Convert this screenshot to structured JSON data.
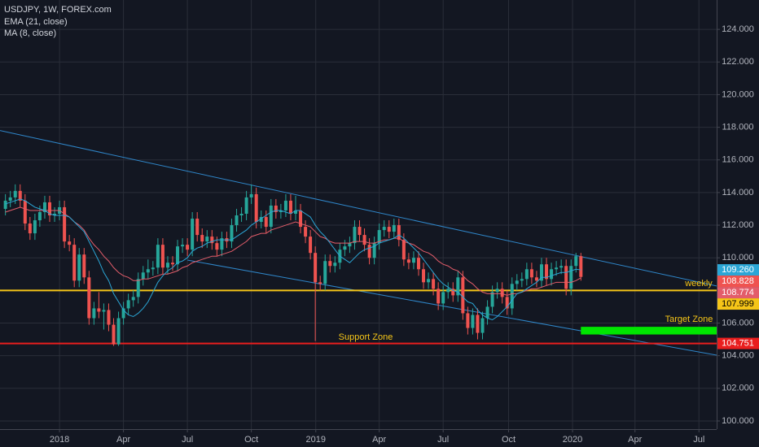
{
  "chart_data": {
    "type": "candlestick",
    "title": "USDJPY, 1W, FOREX.com",
    "xlim": [
      -1.1,
      144.6
    ],
    "ylim": [
      99.5,
      125.8
    ],
    "grid": true,
    "up_color": "#26a69a",
    "down_color": "#ef5350",
    "xticks": [
      {
        "value": 11,
        "label": "2018"
      },
      {
        "value": 24,
        "label": "Apr"
      },
      {
        "value": 37,
        "label": "Jul"
      },
      {
        "value": 50,
        "label": "Oct"
      },
      {
        "value": 63.1,
        "label": "2019"
      },
      {
        "value": 76,
        "label": "Apr"
      },
      {
        "value": 89,
        "label": "Jul"
      },
      {
        "value": 102.3,
        "label": "Oct"
      },
      {
        "value": 115.3,
        "label": "2020"
      },
      {
        "value": 128,
        "label": "Apr"
      },
      {
        "value": 141,
        "label": "Jul"
      }
    ],
    "yticks": [
      {
        "value": 100,
        "label": "100.000"
      },
      {
        "value": 102,
        "label": "102.000"
      },
      {
        "value": 104,
        "label": "104.000"
      },
      {
        "value": 106,
        "label": "106.000"
      },
      {
        "value": 108,
        "label": "108.000"
      },
      {
        "value": 110,
        "label": "110.000"
      },
      {
        "value": 112,
        "label": "112.000"
      },
      {
        "value": 114,
        "label": "114.000"
      },
      {
        "value": 116,
        "label": "116.000"
      },
      {
        "value": 118,
        "label": "118.000"
      },
      {
        "value": 120,
        "label": "120.000"
      },
      {
        "value": 122,
        "label": "122.000"
      },
      {
        "value": 124,
        "label": "124.000"
      }
    ],
    "open": [
      113.0,
      113.5,
      113.7,
      114.1,
      113.5,
      112.1,
      111.5,
      112.3,
      112.8,
      113.4,
      112.6,
      112.7,
      113.1,
      111.0,
      110.8,
      108.6,
      110.2,
      108.8,
      106.3,
      106.9,
      106.7,
      106.8,
      105.9,
      104.7,
      106.3,
      106.9,
      107.4,
      107.6,
      108.7,
      109.1,
      109.3,
      109.4,
      110.8,
      109.4,
      109.7,
      109.6,
      110.7,
      110.8,
      110.5,
      112.4,
      111.4,
      111.0,
      111.3,
      110.9,
      110.5,
      111.2,
      111.0,
      112.0,
      112.6,
      112.7,
      113.7,
      113.9,
      112.2,
      112.5,
      111.9,
      113.2,
      112.8,
      112.9,
      113.5,
      112.7,
      112.9,
      111.9,
      111.3,
      110.3,
      108.5,
      108.4,
      109.8,
      109.5,
      109.7,
      110.5,
      110.7,
      110.9,
      111.9,
      111.4,
      110.8,
      110.0,
      110.9,
      111.7,
      111.9,
      111.6,
      112.0,
      111.1,
      109.9,
      109.7,
      110.0,
      109.3,
      108.5,
      108.7,
      108.1,
      107.2,
      107.9,
      108.1,
      107.7,
      108.8,
      106.6,
      105.7,
      106.5,
      105.4,
      106.3,
      107.0,
      107.9,
      108.1,
      107.6,
      106.9,
      108.4,
      108.6,
      108.7,
      109.3,
      108.8,
      108.6,
      109.6,
      108.7,
      109.3,
      109.4,
      109.5,
      108.1,
      109.5,
      110.1
    ],
    "high": [
      113.9,
      114.1,
      114.5,
      114.5,
      113.9,
      112.5,
      112.7,
      113.2,
      113.8,
      113.8,
      113.1,
      113.5,
      113.5,
      111.4,
      111.2,
      110.6,
      110.6,
      109.2,
      107.3,
      107.9,
      107.2,
      107.2,
      106.3,
      106.7,
      107.3,
      107.8,
      108.0,
      109.1,
      109.5,
      109.9,
      109.8,
      111.2,
      111.2,
      110.1,
      110.1,
      111.1,
      111.2,
      111.2,
      112.8,
      112.8,
      111.8,
      111.7,
      111.7,
      111.3,
      111.6,
      111.6,
      112.4,
      113.0,
      113.1,
      114.1,
      114.5,
      114.3,
      112.9,
      112.9,
      113.6,
      113.6,
      113.3,
      113.9,
      113.9,
      113.8,
      113.3,
      112.3,
      111.7,
      110.7,
      108.9,
      110.2,
      110.2,
      110.1,
      110.9,
      111.1,
      111.3,
      112.3,
      112.3,
      111.8,
      111.2,
      111.3,
      112.1,
      112.3,
      112.3,
      112.4,
      112.4,
      111.5,
      110.3,
      110.4,
      110.4,
      109.7,
      109.1,
      109.1,
      108.5,
      108.3,
      108.5,
      108.5,
      109.2,
      109.2,
      107.0,
      106.9,
      106.9,
      106.7,
      107.4,
      108.3,
      108.5,
      108.5,
      108.0,
      108.8,
      109.0,
      109.1,
      109.7,
      109.7,
      109.2,
      110.0,
      110.0,
      109.7,
      109.8,
      109.9,
      109.9,
      109.9,
      110.3,
      110.3
    ],
    "low": [
      112.6,
      113.1,
      113.3,
      113.1,
      111.7,
      111.1,
      111.1,
      111.9,
      112.4,
      112.2,
      112.2,
      112.3,
      110.6,
      110.4,
      108.2,
      108.2,
      108.4,
      105.9,
      105.9,
      106.3,
      105.6,
      105.5,
      104.6,
      104.6,
      105.9,
      106.5,
      107.0,
      107.2,
      108.3,
      108.7,
      108.9,
      109.0,
      109.0,
      109.0,
      109.2,
      109.2,
      110.3,
      110.1,
      110.1,
      111.0,
      110.6,
      110.6,
      110.5,
      110.1,
      110.1,
      110.6,
      110.6,
      111.6,
      112.2,
      112.3,
      113.3,
      111.8,
      111.8,
      111.5,
      111.5,
      112.4,
      112.4,
      112.5,
      112.3,
      112.3,
      111.5,
      110.9,
      109.9,
      104.9,
      108.0,
      108.0,
      109.1,
      109.1,
      109.3,
      110.1,
      110.3,
      110.5,
      111.0,
      110.4,
      109.6,
      109.6,
      110.5,
      111.3,
      111.2,
      111.2,
      110.7,
      109.5,
      109.3,
      109.3,
      108.9,
      108.1,
      108.1,
      107.7,
      106.8,
      106.8,
      107.5,
      107.3,
      107.3,
      106.2,
      105.3,
      105.3,
      105.0,
      105.0,
      105.9,
      106.6,
      107.5,
      107.2,
      106.5,
      106.5,
      108.0,
      108.2,
      108.3,
      108.4,
      108.2,
      108.2,
      108.3,
      108.3,
      108.9,
      109.0,
      107.7,
      107.7,
      109.1,
      108.6
    ],
    "close": [
      113.5,
      113.7,
      114.1,
      113.5,
      112.1,
      111.5,
      112.3,
      112.8,
      113.4,
      112.6,
      112.7,
      113.1,
      111.0,
      110.8,
      108.6,
      110.2,
      108.8,
      106.3,
      106.9,
      106.7,
      106.8,
      105.9,
      104.7,
      106.3,
      106.9,
      107.4,
      107.6,
      108.7,
      109.1,
      109.3,
      109.4,
      110.8,
      109.4,
      109.7,
      109.6,
      110.7,
      110.8,
      110.5,
      112.4,
      111.4,
      111.0,
      111.3,
      110.9,
      110.5,
      111.2,
      111.0,
      112.0,
      112.6,
      112.7,
      113.7,
      113.9,
      112.2,
      112.5,
      111.9,
      113.2,
      112.8,
      112.9,
      113.5,
      112.7,
      112.9,
      111.9,
      111.3,
      110.3,
      108.5,
      108.4,
      109.8,
      109.5,
      109.7,
      110.5,
      110.7,
      110.9,
      111.9,
      111.4,
      110.8,
      110.0,
      110.9,
      111.7,
      111.9,
      111.6,
      112.0,
      111.1,
      109.9,
      109.7,
      110.0,
      109.3,
      108.5,
      108.7,
      108.1,
      107.2,
      107.9,
      108.1,
      107.7,
      108.8,
      106.6,
      105.7,
      106.5,
      105.4,
      106.3,
      107.0,
      107.9,
      108.1,
      107.6,
      106.9,
      108.4,
      108.6,
      108.7,
      109.3,
      108.8,
      108.6,
      109.6,
      108.7,
      109.3,
      109.4,
      109.5,
      108.1,
      109.5,
      110.1,
      108.828
    ],
    "close_label": "108.828",
    "series": [
      {
        "name": "EMA (21, close)",
        "color": "#e35d6a",
        "last_label": "108.774",
        "values": [
          112.8,
          112.9,
          113.0,
          113.1,
          113.0,
          112.9,
          112.9,
          112.9,
          112.9,
          112.9,
          112.9,
          112.9,
          112.7,
          112.5,
          112.2,
          112.0,
          111.7,
          111.2,
          110.8,
          110.5,
          110.1,
          109.8,
          109.4,
          109.1,
          108.9,
          108.8,
          108.6,
          108.6,
          108.7,
          108.7,
          108.8,
          108.9,
          109.0,
          109.0,
          109.1,
          109.2,
          109.4,
          109.5,
          109.7,
          109.8,
          109.9,
          110.0,
          110.1,
          110.1,
          110.2,
          110.3,
          110.4,
          110.6,
          110.8,
          111.0,
          111.3,
          111.4,
          111.5,
          111.5,
          111.7,
          111.8,
          111.9,
          112.0,
          112.1,
          112.2,
          112.1,
          112.0,
          111.9,
          111.6,
          111.3,
          111.2,
          111.0,
          110.9,
          110.9,
          110.9,
          110.9,
          111.0,
          111.0,
          111.0,
          110.9,
          110.9,
          111.0,
          111.1,
          111.1,
          111.2,
          111.2,
          111.0,
          110.9,
          110.8,
          110.6,
          110.4,
          110.3,
          110.1,
          109.8,
          109.6,
          109.5,
          109.3,
          109.2,
          108.9,
          108.6,
          108.4,
          108.1,
          107.9,
          107.8,
          107.8,
          107.8,
          107.8,
          107.7,
          107.8,
          107.8,
          107.9,
          108.0,
          108.1,
          108.1,
          108.2,
          108.3,
          108.4,
          108.5,
          108.5,
          108.5,
          108.5,
          108.6,
          108.774
        ]
      },
      {
        "name": "MA (8, close)",
        "color": "#2ba6d6",
        "last_label": "109.260",
        "values": [
          113.3,
          113.4,
          113.5,
          113.6,
          113.5,
          113.3,
          113.1,
          113.0,
          112.9,
          112.7,
          112.6,
          112.6,
          112.6,
          112.5,
          112.2,
          111.9,
          111.6,
          111.0,
          110.4,
          109.8,
          109.1,
          108.6,
          107.8,
          107.3,
          106.8,
          106.5,
          106.4,
          106.6,
          106.9,
          107.3,
          107.9,
          108.5,
          108.9,
          109.2,
          109.4,
          109.7,
          109.8,
          110.0,
          110.4,
          110.6,
          110.7,
          110.9,
          111.0,
          111.1,
          111.1,
          111.1,
          111.1,
          111.3,
          111.5,
          111.7,
          112.0,
          112.2,
          112.4,
          112.6,
          112.8,
          112.9,
          112.9,
          112.8,
          112.7,
          112.9,
          112.9,
          112.7,
          112.5,
          112.0,
          111.6,
          111.3,
          110.9,
          110.5,
          110.1,
          109.9,
          109.7,
          110.0,
          110.3,
          110.5,
          110.6,
          110.7,
          110.9,
          111.0,
          111.1,
          111.2,
          111.4,
          111.2,
          110.9,
          110.6,
          110.3,
          109.9,
          109.5,
          109.1,
          108.7,
          108.4,
          108.2,
          108.0,
          107.9,
          107.6,
          107.3,
          107.2,
          106.8,
          106.5,
          106.3,
          106.2,
          106.4,
          106.7,
          107.0,
          107.4,
          107.8,
          107.9,
          108.1,
          108.3,
          108.5,
          108.8,
          108.8,
          108.9,
          109.0,
          109.1,
          109.1,
          109.2,
          109.3,
          109.26
        ]
      }
    ],
    "hlines": [
      {
        "value": 107.999,
        "label": "107.999",
        "color": "#f5c518"
      },
      {
        "value": 104.751,
        "label": "104.751",
        "color": "#e91e1e"
      }
    ],
    "trendlines": [
      {
        "x": [
          -1.1,
          144.6
        ],
        "y": [
          117.8,
          108.27
        ],
        "color": "#2f86c9"
      },
      {
        "x": [
          37,
          144.6
        ],
        "y": [
          109.86,
          104.03
        ],
        "color": "#2f86c9"
      }
    ],
    "zones": [
      {
        "x": [
          117,
          144.6
        ],
        "y": [
          105.3,
          105.77
        ],
        "color": "#00e600"
      }
    ],
    "annotations": [
      {
        "text": "weekly",
        "color": "#f5c518"
      },
      {
        "text": "Target Zone",
        "color": "#f5c518"
      },
      {
        "text": "Support Zone",
        "color": "#f5c518"
      }
    ]
  }
}
